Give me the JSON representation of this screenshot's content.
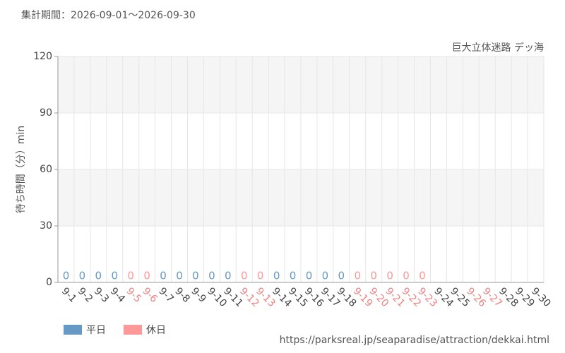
{
  "chart_data": {
    "type": "bar",
    "subtitle": "集計期間：2026-09-01～2026-09-30",
    "annotation": "巨大立体迷路 デッ海",
    "y_label": "待ち時間（分）min",
    "source": "https://parksreal.jp/seaparadise/attraction/dekkai.html",
    "categories": [
      "9-1",
      "9-2",
      "9-3",
      "9-4",
      "9-5",
      "9-6",
      "9-7",
      "9-8",
      "9-9",
      "9-10",
      "9-11",
      "9-12",
      "9-13",
      "9-14",
      "9-15",
      "9-16",
      "9-17",
      "9-18",
      "9-19",
      "9-20",
      "9-21",
      "9-22",
      "9-23",
      "9-24",
      "9-25",
      "9-26",
      "9-27",
      "9-28",
      "9-29",
      "9-30"
    ],
    "category_colors": [
      "#444",
      "#444",
      "#444",
      "#444",
      "#f08080",
      "#f08080",
      "#444",
      "#444",
      "#444",
      "#444",
      "#444",
      "#f08080",
      "#f08080",
      "#444",
      "#444",
      "#444",
      "#444",
      "#444",
      "#f08080",
      "#f08080",
      "#f08080",
      "#f08080",
      "#f08080",
      "#444",
      "#444",
      "#f08080",
      "#f08080",
      "#444",
      "#444",
      "#444"
    ],
    "series": [
      {
        "name": "平日",
        "color": "#6699c4",
        "values": [
          0,
          0,
          0,
          0,
          null,
          null,
          0,
          0,
          0,
          0,
          0,
          null,
          null,
          0,
          0,
          0,
          0,
          0,
          null,
          null,
          null,
          null,
          null,
          null,
          null,
          null,
          null,
          null,
          null,
          null
        ]
      },
      {
        "name": "休日",
        "color": "#ff9999",
        "values": [
          null,
          null,
          null,
          null,
          0,
          0,
          null,
          null,
          null,
          null,
          null,
          0,
          0,
          null,
          null,
          null,
          null,
          null,
          0,
          0,
          0,
          0,
          0,
          null,
          null,
          null,
          null,
          null,
          null,
          null
        ]
      }
    ],
    "ylim": [
      0,
      120
    ],
    "yticks": [
      0,
      30,
      60,
      90,
      120
    ],
    "grid": true
  }
}
